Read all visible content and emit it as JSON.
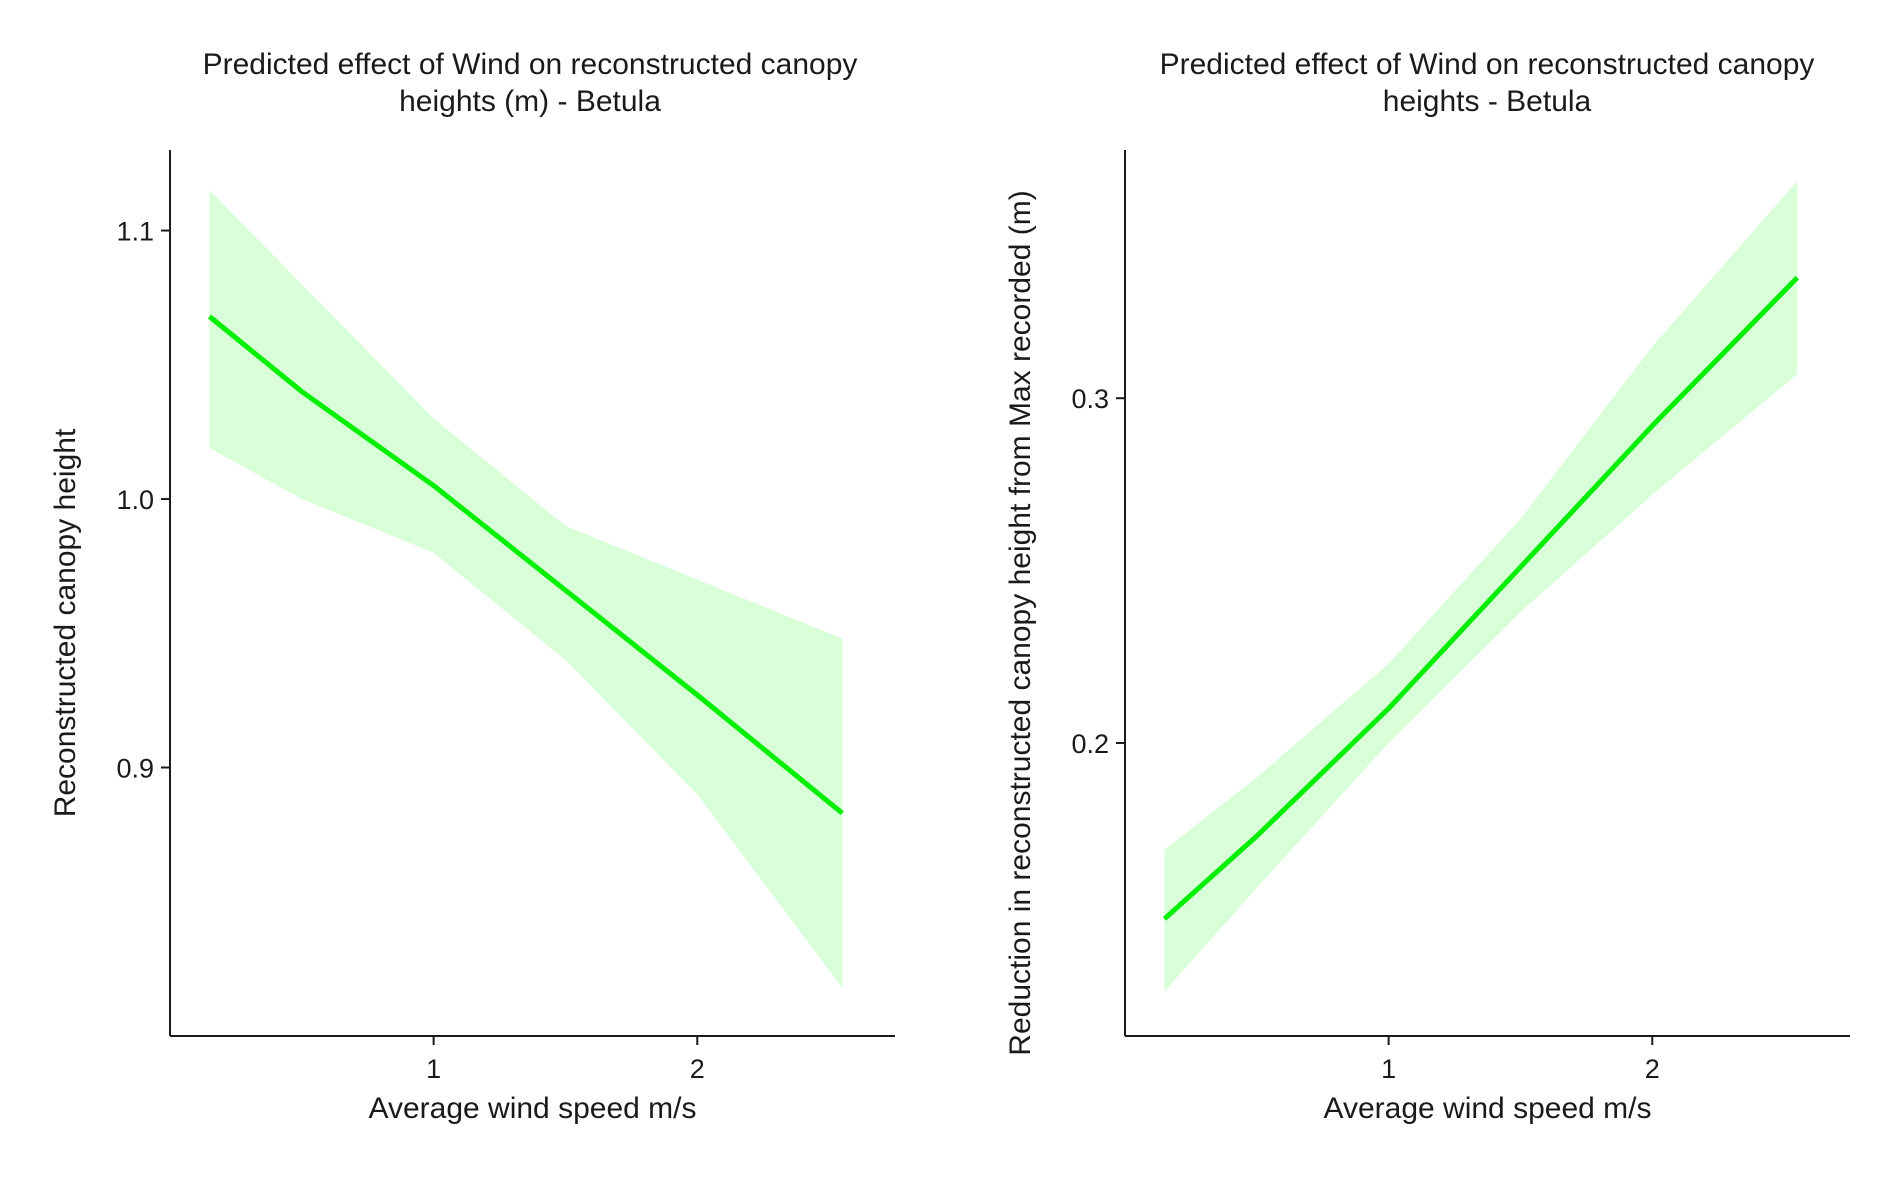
{
  "chart_data": [
    {
      "type": "line",
      "title": [
        "Predicted effect of Wind on reconstructed canopy",
        "heights (m) - Betula"
      ],
      "xlabel": "Average wind speed m/s",
      "ylabel": "Reconstructed canopy height",
      "xlim": [
        0.0,
        2.75
      ],
      "ylim": [
        0.8,
        1.13
      ],
      "xticks": [
        {
          "value": 1,
          "label": "1"
        },
        {
          "value": 2,
          "label": "2"
        }
      ],
      "yticks": [
        {
          "value": 0.9,
          "label": "0.9"
        },
        {
          "value": 1.0,
          "label": "1.0"
        },
        {
          "value": 1.1,
          "label": "1.1"
        }
      ],
      "grid": false,
      "colors": {
        "line": "#00ee00",
        "band": "#d8ffd8",
        "axis": "#1a1a1a"
      },
      "series": [
        {
          "x": [
            0.15,
            0.5,
            1.0,
            1.5,
            2.0,
            2.55
          ],
          "y": [
            1.068,
            1.04,
            1.005,
            0.966,
            0.927,
            0.883
          ],
          "lower": [
            1.019,
            1.0,
            0.98,
            0.94,
            0.89,
            0.818
          ],
          "upper": [
            1.115,
            1.08,
            1.03,
            0.99,
            0.97,
            0.948
          ]
        }
      ]
    },
    {
      "type": "line",
      "title": [
        "Predicted effect of Wind on reconstructed canopy",
        "heights - Betula"
      ],
      "xlabel": "Average wind speed m/s",
      "ylabel": "Reduction in reconstructed canopy height from Max recorded (m)",
      "xlim": [
        0.0,
        2.75
      ],
      "ylim": [
        0.115,
        0.372
      ],
      "xticks": [
        {
          "value": 1,
          "label": "1"
        },
        {
          "value": 2,
          "label": "2"
        }
      ],
      "yticks": [
        {
          "value": 0.2,
          "label": "0.2"
        },
        {
          "value": 0.3,
          "label": "0.3"
        }
      ],
      "grid": false,
      "colors": {
        "line": "#00ee00",
        "band": "#d8ffd8",
        "axis": "#1a1a1a"
      },
      "series": [
        {
          "x": [
            0.15,
            0.5,
            1.0,
            1.5,
            2.0,
            2.55
          ],
          "y": [
            0.149,
            0.173,
            0.21,
            0.251,
            0.292,
            0.335
          ],
          "lower": [
            0.128,
            0.158,
            0.2,
            0.238,
            0.272,
            0.307
          ],
          "upper": [
            0.169,
            0.19,
            0.223,
            0.265,
            0.315,
            0.363
          ]
        }
      ]
    }
  ]
}
